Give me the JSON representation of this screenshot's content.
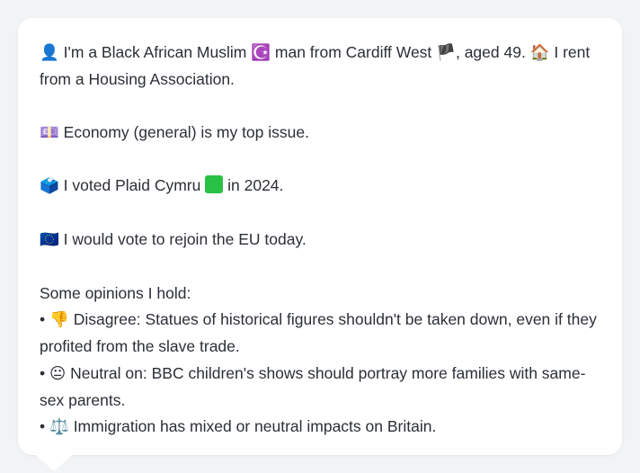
{
  "profile": {
    "line1_icon": "👤",
    "line1_text_a": "I'm a Black African Muslim",
    "line1_icon_religion": "☪️",
    "line1_text_b": "man from Cardiff West",
    "line1_icon_flag": "🏴",
    "line1_text_c": ", aged 49.",
    "line1_icon_house": "🏠",
    "line1_text_d": "I rent from a Housing Association.",
    "issue_icon": "💷",
    "issue_text": "Economy (general) is my top issue.",
    "vote_icon": "🗳️",
    "vote_text_a": "I voted Plaid Cymru",
    "vote_party_color_icon": "🟩",
    "vote_text_b": "in 2024.",
    "eu_icon": "🇪🇺",
    "eu_text": "I would vote to rejoin the EU today.",
    "opinions_heading": "Some opinions I hold:",
    "opinions": [
      {
        "bullet": "•",
        "icon": "👎",
        "text": "Disagree: Statues of historical figures shouldn't be taken down, even if they profited from the slave trade."
      },
      {
        "bullet": "•",
        "icon": "😐",
        "text": "Neutral on: BBC children's shows should portray more families with same-sex parents."
      },
      {
        "bullet": "•",
        "icon": "⚖️",
        "text": "Immigration has mixed or neutral impacts on Britain."
      }
    ]
  },
  "colors": {
    "background": "#f2f3f5",
    "card": "#ffffff",
    "text": "#2b2f36",
    "plaid_green": "#29c046"
  }
}
